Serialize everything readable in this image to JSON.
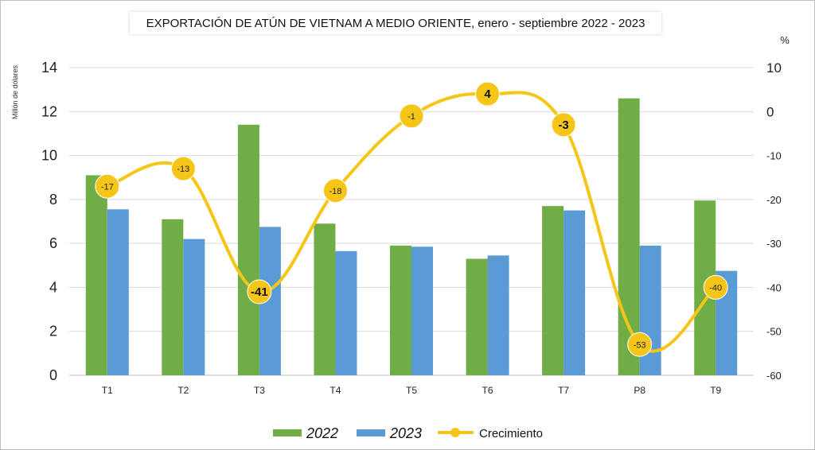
{
  "chart_data": {
    "type": "bar",
    "title": "EXPORTACIÓN DE ATÚN DE VIETNAM A MEDIO ORIENTE, enero - septiembre 2022 - 2023",
    "ylabel": "Millón de dólares",
    "y2label": "%",
    "categories": [
      "T1",
      "T2",
      "T3",
      "T4",
      "T5",
      "T6",
      "T7",
      "P8",
      "T9"
    ],
    "ylim": [
      0,
      14
    ],
    "yticks": [
      0,
      2,
      4,
      6,
      8,
      10,
      12,
      14
    ],
    "y2lim": [
      -60,
      10
    ],
    "y2ticks": [
      10,
      0,
      -10,
      -20,
      -30,
      -40,
      -50,
      -60
    ],
    "series": [
      {
        "name": "2022",
        "type": "bar",
        "color": "#70AD47",
        "values": [
          9.1,
          7.1,
          11.4,
          6.9,
          5.9,
          5.3,
          7.7,
          12.6,
          7.95
        ]
      },
      {
        "name": "2023",
        "type": "bar",
        "color": "#5B9BD5",
        "values": [
          7.55,
          6.2,
          6.75,
          5.65,
          5.85,
          5.45,
          7.5,
          5.9,
          4.75
        ]
      },
      {
        "name": "Crecimiento",
        "type": "line",
        "axis": "right",
        "color": "#F5C518",
        "values": [
          -17,
          -13,
          -41,
          -18,
          -1,
          4,
          -3,
          -53,
          -40
        ]
      }
    ],
    "point_labels": [
      "-17",
      "-13",
      "-41",
      "-18",
      "-1",
      "4",
      "-3",
      "-53",
      "-40"
    ],
    "legend_position": "bottom",
    "grid": true
  }
}
